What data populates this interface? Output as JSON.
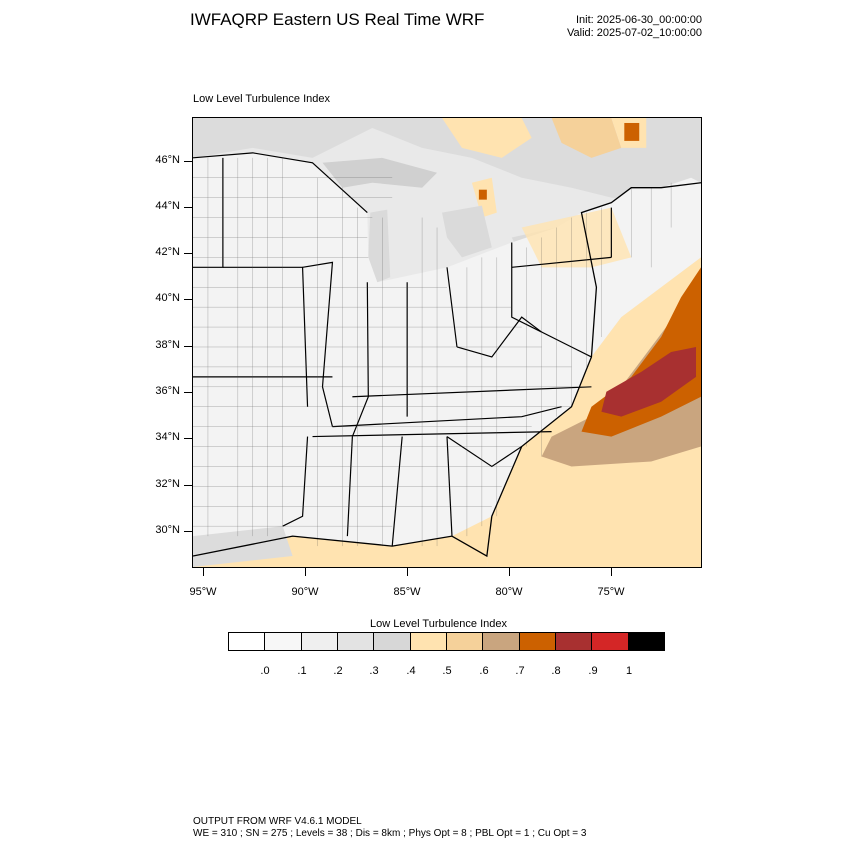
{
  "header": {
    "title": "IWFAQRP Eastern US Real Time WRF",
    "init": "Init: 2025-06-30_00:00:00",
    "valid": "Valid: 2025-07-02_10:00:00"
  },
  "panel": {
    "title": "Low Level Turbulence Index"
  },
  "axes": {
    "lat_labels": [
      "46°N",
      "44°N",
      "42°N",
      "40°N",
      "38°N",
      "36°N",
      "34°N",
      "32°N",
      "30°N"
    ],
    "lon_labels": [
      "95°W",
      "90°W",
      "85°W",
      "80°W",
      "75°W"
    ]
  },
  "colorbar": {
    "title": "Low Level Turbulence Index",
    "labels": [
      ".0",
      ".1",
      ".2",
      ".3",
      ".4",
      ".5",
      ".6",
      ".7",
      ".8",
      ".9",
      "1"
    ],
    "colors": [
      "#ffffff",
      "#f7f7f7",
      "#efefef",
      "#e3e3e3",
      "#d7d7d7",
      "#ffe3b0",
      "#f5d19a",
      "#c9a57f",
      "#cc6100",
      "#a83030",
      "#d42626",
      "#000000"
    ]
  },
  "footer": {
    "line1": "OUTPUT FROM WRF V4.6.1 MODEL",
    "line2": "WE = 310 ; SN = 275 ; Levels = 38 ; Dis = 8km ; Phys Opt = 8 ; PBL Opt = 1 ; Cu Opt = 3"
  }
}
